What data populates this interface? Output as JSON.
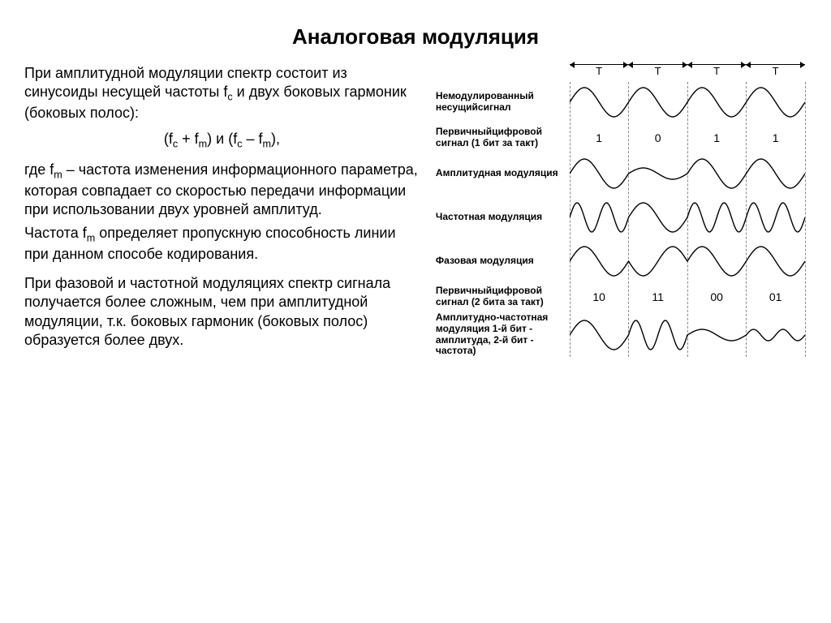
{
  "title": "Аналоговая модуляция",
  "text": {
    "p1a": "При амплитудной модуляции спектр состоит из синусоиды несущей частоты f",
    "p1a_sub": "c",
    "p1b": " и двух боковых гармоник (боковых полос):",
    "formula_a": "(f",
    "formula_b": " + f",
    "formula_c": ") и (f",
    "formula_d": " – f",
    "formula_e": "),",
    "sub_c": "c",
    "sub_m": "m",
    "p2a": "где f",
    "p2a_sub": "m",
    "p2b": " – частота изменения информационного параметра, которая совпадает со скоростью передачи информации при использовании двух уровней амплитуд.",
    "p3a": "Частота f",
    "p3a_sub": "m",
    "p3b": " определяет пропускную способность линии при данном способе кодирования.",
    "p4": "При фазовой и частотной модуляциях спектр сигнала получается более сложным, чем при амплитудной модуляции, т.к. боковых гармоник (боковых полос) образуется более двух."
  },
  "diagram": {
    "t_label": "T",
    "periods": 4,
    "rows": [
      {
        "label": "Немодулированный несущийсигнал",
        "kind": "carrier"
      },
      {
        "label": "Первичныйцифровой сигнал (1 бит за такт)",
        "kind": "digits",
        "values": [
          "1",
          "0",
          "1",
          "1"
        ]
      },
      {
        "label": "Амплитудная модуляция",
        "kind": "am"
      },
      {
        "label": "Частотная модуляция",
        "kind": "fm"
      },
      {
        "label": "Фазовая модуляция",
        "kind": "pm"
      },
      {
        "label": "Первичныйцифровой сигнал (2 бита за такт)",
        "kind": "digits",
        "values": [
          "10",
          "11",
          "00",
          "01"
        ]
      },
      {
        "label": "Амплитудно-частотная модуляция\n1-й бит - амплитуда, 2-й бит - частота)",
        "kind": "amfm"
      }
    ],
    "wave_color": "#000000",
    "wave_stroke": 1.4,
    "cell_w": 72.5,
    "wave_h": 50,
    "amp_full": 18,
    "amp_low": 7,
    "bits1": [
      1,
      0,
      1,
      1
    ],
    "bits2": [
      [
        1,
        0
      ],
      [
        1,
        1
      ],
      [
        0,
        0
      ],
      [
        0,
        1
      ]
    ]
  }
}
